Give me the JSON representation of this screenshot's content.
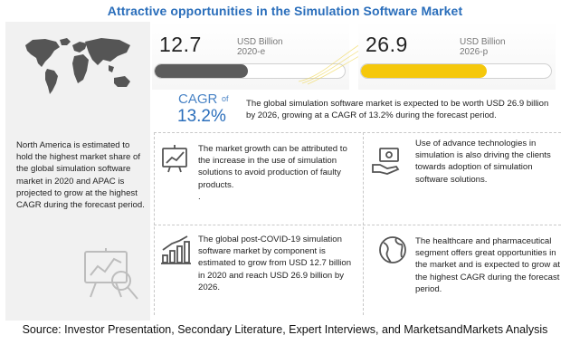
{
  "title": "Attractive opportunities in the Simulation Software Market",
  "left_panel": {
    "text": "North America is estimated to hold the highest market share of the global simulation software market in 2020 and APAC is projected to grow at the highest CAGR during the forecast period.",
    "map_icon": "world-map-icon",
    "analytics_icon": "analytics-board-icon"
  },
  "stats": [
    {
      "value": "12.7",
      "unit_line1": "USD Billion",
      "unit_line2": "2020-e",
      "bar_fraction": 0.49,
      "bar_color": "#5c5c5c"
    },
    {
      "value": "26.9",
      "unit_line1": "USD Billion",
      "unit_line2": "2026-p",
      "bar_fraction": 0.66,
      "bar_color": "#f5c80c"
    }
  ],
  "cagr": {
    "label": "CAGR",
    "of": "of",
    "value": "13.2%",
    "text": "The global simulation software market is expected to be worth USD 26.9 billion by 2026, growing at a CAGR of 13.2% during the forecast period."
  },
  "points": [
    {
      "icon": "growth-chart-icon",
      "text": "The market growth can be attributed to the increase in the use of simulation solutions to avoid production of faulty products.",
      "trailing": "."
    },
    {
      "icon": "money-hand-icon",
      "text": "Use of advance technologies in simulation is also driving the clients towards adoption of simulation software solutions."
    },
    {
      "icon": "bar-growth-icon",
      "text": "The global post-COVID-19 simulation software market by component is estimated to grow from USD 12.7 billion in 2020 and reach USD 26.9 billion by 2026."
    },
    {
      "icon": "globe-icon",
      "text": "The healthcare and pharmaceutical segment offers great opportunities in the market and is expected to grow at the highest CAGR during the forecast period."
    }
  ],
  "source": "Source: Investor Presentation, Secondary Literature, Expert Interviews, and MarketsandMarkets Analysis",
  "colors": {
    "title": "#2a6ebb",
    "cagr": "#2a6ebb",
    "accent_yellow": "#f5c80c"
  }
}
